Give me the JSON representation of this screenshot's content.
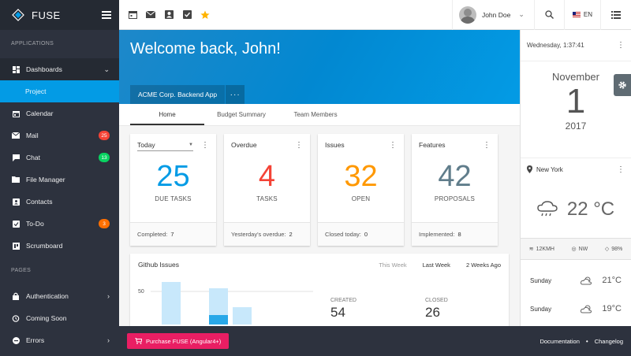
{
  "app": {
    "name": "FUSE"
  },
  "sidebar": {
    "sections": [
      "APPLICATIONS",
      "PAGES"
    ],
    "items": [
      {
        "label": "Dashboards",
        "icon": "dashboard-icon"
      },
      {
        "label": "Project",
        "icon": ""
      },
      {
        "label": "Calendar",
        "icon": "calendar-icon"
      },
      {
        "label": "Mail",
        "icon": "mail-icon",
        "badge": "25",
        "badge_color": "#f44336"
      },
      {
        "label": "Chat",
        "icon": "chat-icon",
        "badge": "13",
        "badge_color": "#09d261"
      },
      {
        "label": "File Manager",
        "icon": "folder-icon"
      },
      {
        "label": "Contacts",
        "icon": "contacts-icon"
      },
      {
        "label": "To-Do",
        "icon": "checkbox-icon",
        "badge": "3",
        "badge_color": "#ff6f00"
      },
      {
        "label": "Scrumboard",
        "icon": "board-icon"
      },
      {
        "label": "Authentication",
        "icon": "lock-icon"
      },
      {
        "label": "Coming Soon",
        "icon": "alarm-icon"
      },
      {
        "label": "Errors",
        "icon": "error-icon"
      }
    ]
  },
  "topbar": {
    "shortcuts": [
      "calendar-icon",
      "mail-icon",
      "contacts-icon",
      "checkbox-icon",
      "star-icon"
    ],
    "user_name": "John Doe",
    "language": "EN"
  },
  "hero": {
    "title": "Welcome back, John!",
    "project": "ACME Corp. Backend App",
    "more": "···"
  },
  "tabs": [
    "Home",
    "Budget Summary",
    "Team Members"
  ],
  "cards": [
    {
      "title": "Today",
      "value": "25",
      "label": "DUE TASKS",
      "foot_label": "Completed:",
      "foot_value": "7",
      "color": "#039be5"
    },
    {
      "title": "Overdue",
      "value": "4",
      "label": "TASKS",
      "foot_label": "Yesterday's overdue:",
      "foot_value": "2",
      "color": "#f44336"
    },
    {
      "title": "Issues",
      "value": "32",
      "label": "OPEN",
      "foot_label": "Closed today:",
      "foot_value": "0",
      "color": "#ff9800"
    },
    {
      "title": "Features",
      "value": "42",
      "label": "PROPOSALS",
      "foot_label": "Implemented:",
      "foot_value": "8",
      "color": "#607d8b"
    }
  ],
  "github": {
    "title": "Github Issues",
    "ranges": [
      "This Week",
      "Last Week",
      "2 Weeks Ago"
    ],
    "axis_label": "50",
    "created_label": "CREATED",
    "created_value": "54",
    "closed_label": "CLOSED",
    "closed_value": "26"
  },
  "right": {
    "datetime": "Wednesday, 1:37:41",
    "month": "November",
    "day": "1",
    "year": "2017",
    "city": "New York",
    "temp": "22 °C",
    "wind": "12KMH",
    "direction": "NW",
    "humidity": "98%",
    "forecast": [
      {
        "day": "Sunday",
        "temp": "21°C",
        "icon": "cloud-sun-icon"
      },
      {
        "day": "Sunday",
        "temp": "19°C",
        "icon": "cloud-sun-icon"
      }
    ]
  },
  "footer": {
    "purchase": "Purchase FUSE (Angular4+)",
    "documentation": "Documentation",
    "changelog": "Changelog"
  }
}
